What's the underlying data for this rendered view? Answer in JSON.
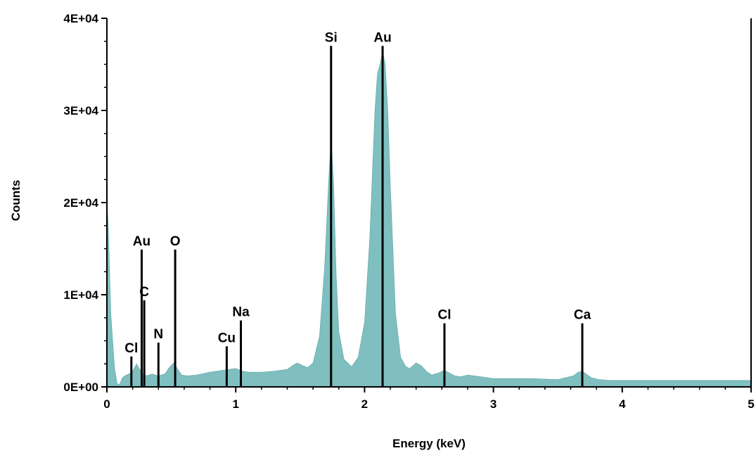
{
  "chart_data": {
    "type": "area",
    "title": "",
    "xlabel": "Energy (keV)",
    "ylabel": "Counts",
    "xlim": [
      0,
      5
    ],
    "ylim": [
      0,
      40000
    ],
    "grid": false,
    "x_ticks": [
      {
        "value": 0,
        "label": "0"
      },
      {
        "value": 1,
        "label": "1"
      },
      {
        "value": 2,
        "label": "2"
      },
      {
        "value": 3,
        "label": "3"
      },
      {
        "value": 4,
        "label": "4"
      },
      {
        "value": 5,
        "label": "5"
      }
    ],
    "y_ticks": [
      {
        "value": 0,
        "label": "0E+00"
      },
      {
        "value": 10000,
        "label": "1E+04"
      },
      {
        "value": 20000,
        "label": "2E+04"
      },
      {
        "value": 30000,
        "label": "3E+04"
      },
      {
        "value": 40000,
        "label": "4E+04"
      }
    ],
    "spectrum_color": "#7fbfbf",
    "spectrum": {
      "x": [
        0.0,
        0.01,
        0.03,
        0.06,
        0.08,
        0.1,
        0.12,
        0.14,
        0.17,
        0.2,
        0.23,
        0.26,
        0.28,
        0.31,
        0.35,
        0.4,
        0.45,
        0.49,
        0.52,
        0.55,
        0.58,
        0.62,
        0.7,
        0.8,
        0.9,
        0.95,
        1.0,
        1.05,
        1.1,
        1.2,
        1.3,
        1.4,
        1.45,
        1.48,
        1.52,
        1.56,
        1.6,
        1.65,
        1.69,
        1.72,
        1.74,
        1.76,
        1.78,
        1.8,
        1.84,
        1.9,
        1.95,
        2.0,
        2.04,
        2.08,
        2.1,
        2.12,
        2.14,
        2.16,
        2.18,
        2.2,
        2.24,
        2.28,
        2.32,
        2.35,
        2.4,
        2.44,
        2.48,
        2.52,
        2.57,
        2.62,
        2.66,
        2.7,
        2.75,
        2.8,
        2.9,
        3.0,
        3.3,
        3.5,
        3.62,
        3.66,
        3.69,
        3.72,
        3.76,
        3.82,
        3.9,
        4.0,
        4.2,
        4.5,
        5.0
      ],
      "y": [
        20000,
        18000,
        8000,
        2000,
        300,
        300,
        1000,
        1200,
        1400,
        1700,
        2500,
        1800,
        1400,
        1200,
        1400,
        1200,
        1400,
        2200,
        2600,
        1900,
        1300,
        1200,
        1300,
        1600,
        1800,
        1900,
        2000,
        1700,
        1600,
        1600,
        1700,
        1900,
        2400,
        2600,
        2300,
        2100,
        2600,
        5500,
        13000,
        22000,
        27000,
        22000,
        12000,
        6000,
        3000,
        2200,
        3200,
        7000,
        16000,
        30000,
        34000,
        35000,
        36500,
        35000,
        30000,
        22000,
        8000,
        3200,
        2200,
        2000,
        2600,
        2300,
        1700,
        1300,
        1500,
        1800,
        1500,
        1200,
        1100,
        1300,
        1100,
        900,
        900,
        800,
        1200,
        1600,
        1700,
        1400,
        1000,
        800,
        700,
        700,
        700,
        700,
        700
      ]
    },
    "element_lines": [
      {
        "label": "Cl",
        "x": 0.19,
        "height": 3300
      },
      {
        "label": "Au",
        "x": 0.27,
        "height": 14900
      },
      {
        "label": "C",
        "x": 0.29,
        "height": 9400
      },
      {
        "label": "N",
        "x": 0.4,
        "height": 4800
      },
      {
        "label": "O",
        "x": 0.53,
        "height": 14900
      },
      {
        "label": "Cu",
        "x": 0.93,
        "height": 4400
      },
      {
        "label": "Na",
        "x": 1.04,
        "height": 7200
      },
      {
        "label": "Si",
        "x": 1.74,
        "height": 37000
      },
      {
        "label": "Au",
        "x": 2.14,
        "height": 37000
      },
      {
        "label": "Cl",
        "x": 2.62,
        "height": 6900
      },
      {
        "label": "Ca",
        "x": 3.69,
        "height": 6900
      }
    ]
  }
}
